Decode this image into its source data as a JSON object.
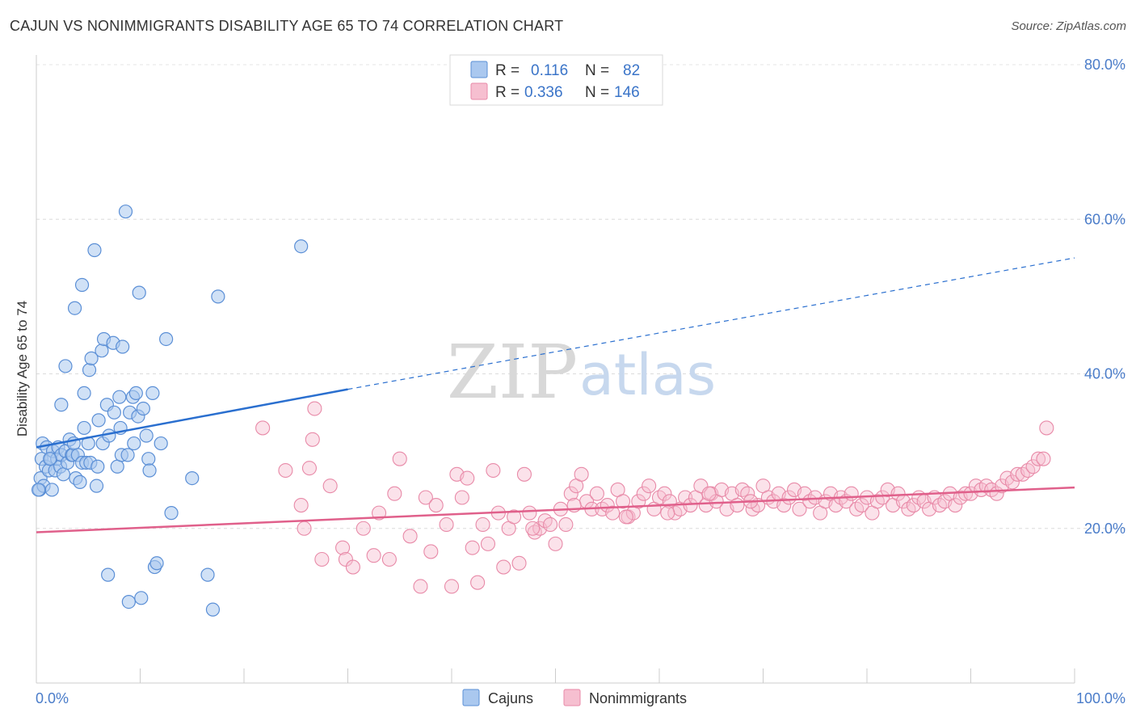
{
  "header": {
    "title": "CAJUN VS NONIMMIGRANTS DISABILITY AGE 65 TO 74 CORRELATION CHART",
    "source": "Source: ZipAtlas.com"
  },
  "watermark": {
    "zip": "ZIP",
    "atlas": "atlas"
  },
  "legend": {
    "rows": [
      {
        "r_label": "R =",
        "r_value": "0.116",
        "n_label": "N =",
        "n_value": "82",
        "color": "#aac8ef",
        "stroke": "#5b8fd6"
      },
      {
        "r_label": "R =",
        "r_value": "0.336",
        "n_label": "N =",
        "n_value": "146",
        "color": "#f6bfd0",
        "stroke": "#e88aa8"
      }
    ]
  },
  "bottom_legend": {
    "items": [
      "Cajuns",
      "Nonimmigrants"
    ]
  },
  "colors": {
    "blue": "#5b8fd6",
    "blue_fill": "#aac8ef",
    "blue_line": "#2a6fcf",
    "pink": "#e88aa8",
    "pink_fill": "#f6bfd0",
    "pink_line": "#e0608b",
    "tick_label": "#4a7cc9"
  },
  "chart_data": {
    "type": "scatter",
    "title": "CAJUN VS NONIMMIGRANTS DISABILITY AGE 65 TO 74 CORRELATION CHART",
    "xlabel": "",
    "ylabel": "Disability Age 65 to 74",
    "xlim": [
      0,
      100
    ],
    "ylim": [
      0,
      80
    ],
    "x_tick_labels": [
      "0.0%",
      "100.0%"
    ],
    "y_ticks": [
      20,
      40,
      60,
      80
    ],
    "y_tick_labels": [
      "20.0%",
      "40.0%",
      "60.0%",
      "80.0%"
    ],
    "grid": true,
    "legend_position": "top-center",
    "series": [
      {
        "name": "Cajuns",
        "r": 0.116,
        "n": 82,
        "trend": {
          "x0": 0,
          "y0": 30.5,
          "x1": 30,
          "y1": 38.0,
          "dashed_to": {
            "x": 100,
            "y": 55.0
          }
        },
        "points": [
          [
            0.3,
            25.0
          ],
          [
            0.4,
            26.5
          ],
          [
            0.5,
            29.0
          ],
          [
            0.6,
            31.0
          ],
          [
            0.7,
            25.5
          ],
          [
            0.9,
            28.0
          ],
          [
            1.0,
            30.5
          ],
          [
            1.2,
            27.5
          ],
          [
            1.4,
            29.0
          ],
          [
            1.5,
            25.0
          ],
          [
            1.6,
            30.0
          ],
          [
            1.8,
            27.5
          ],
          [
            2.0,
            29.0
          ],
          [
            2.1,
            30.5
          ],
          [
            2.3,
            28.0
          ],
          [
            2.4,
            29.5
          ],
          [
            2.6,
            27.0
          ],
          [
            2.8,
            30.0
          ],
          [
            3.0,
            28.5
          ],
          [
            3.2,
            31.5
          ],
          [
            3.4,
            29.5
          ],
          [
            3.5,
            29.5
          ],
          [
            3.6,
            31.0
          ],
          [
            3.8,
            26.5
          ],
          [
            4.0,
            29.5
          ],
          [
            4.2,
            26.0
          ],
          [
            4.4,
            28.5
          ],
          [
            4.6,
            33.0
          ],
          [
            4.8,
            28.5
          ],
          [
            5.0,
            31.0
          ],
          [
            5.2,
            28.5
          ],
          [
            2.4,
            36.0
          ],
          [
            2.8,
            41.0
          ],
          [
            3.7,
            48.5
          ],
          [
            4.4,
            51.5
          ],
          [
            4.6,
            37.5
          ],
          [
            5.1,
            40.5
          ],
          [
            5.3,
            42.0
          ],
          [
            5.6,
            56.0
          ],
          [
            5.8,
            25.5
          ],
          [
            5.9,
            28.0
          ],
          [
            6.0,
            34.0
          ],
          [
            6.3,
            43.0
          ],
          [
            6.4,
            31.0
          ],
          [
            6.5,
            44.5
          ],
          [
            6.8,
            36.0
          ],
          [
            6.9,
            14.0
          ],
          [
            7.0,
            32.0
          ],
          [
            7.4,
            44.0
          ],
          [
            7.5,
            35.0
          ],
          [
            7.8,
            28.0
          ],
          [
            8.0,
            37.0
          ],
          [
            8.1,
            33.0
          ],
          [
            8.2,
            29.5
          ],
          [
            8.3,
            43.5
          ],
          [
            8.6,
            61.0
          ],
          [
            8.8,
            29.5
          ],
          [
            8.9,
            10.5
          ],
          [
            9.0,
            35.0
          ],
          [
            9.3,
            37.0
          ],
          [
            9.4,
            31.0
          ],
          [
            9.6,
            37.5
          ],
          [
            9.8,
            34.5
          ],
          [
            9.9,
            50.5
          ],
          [
            10.1,
            11.0
          ],
          [
            10.3,
            35.5
          ],
          [
            10.6,
            32.0
          ],
          [
            10.8,
            29.0
          ],
          [
            10.9,
            27.5
          ],
          [
            11.2,
            37.5
          ],
          [
            11.4,
            15.0
          ],
          [
            11.6,
            15.5
          ],
          [
            12.0,
            31.0
          ],
          [
            12.5,
            44.5
          ],
          [
            13.0,
            22.0
          ],
          [
            15.0,
            26.5
          ],
          [
            16.5,
            14.0
          ],
          [
            17.0,
            9.5
          ],
          [
            17.5,
            50.0
          ],
          [
            25.5,
            56.5
          ],
          [
            0.2,
            25.0
          ],
          [
            1.3,
            29.0
          ]
        ]
      },
      {
        "name": "Nonimmigrants",
        "r": 0.336,
        "n": 146,
        "trend": {
          "x0": 0,
          "y0": 19.5,
          "x1": 100,
          "y1": 25.3
        },
        "points": [
          [
            21.8,
            33.0
          ],
          [
            24.0,
            27.5
          ],
          [
            25.5,
            23.0
          ],
          [
            25.8,
            20.0
          ],
          [
            26.3,
            27.8
          ],
          [
            26.6,
            31.5
          ],
          [
            26.8,
            35.5
          ],
          [
            27.5,
            16.0
          ],
          [
            28.3,
            25.5
          ],
          [
            29.5,
            17.5
          ],
          [
            29.8,
            16.0
          ],
          [
            30.5,
            15.0
          ],
          [
            31.5,
            20.0
          ],
          [
            32.5,
            16.5
          ],
          [
            33.0,
            22.0
          ],
          [
            34.0,
            16.0
          ],
          [
            34.5,
            24.5
          ],
          [
            35.0,
            29.0
          ],
          [
            36.0,
            19.0
          ],
          [
            37.0,
            12.5
          ],
          [
            37.5,
            24.0
          ],
          [
            38.0,
            17.0
          ],
          [
            38.5,
            23.0
          ],
          [
            39.5,
            20.5
          ],
          [
            40.0,
            12.5
          ],
          [
            40.5,
            27.0
          ],
          [
            41.0,
            24.0
          ],
          [
            41.5,
            26.5
          ],
          [
            42.0,
            17.5
          ],
          [
            42.5,
            13.0
          ],
          [
            43.0,
            20.5
          ],
          [
            43.5,
            18.0
          ],
          [
            44.0,
            27.5
          ],
          [
            44.5,
            22.0
          ],
          [
            45.0,
            15.0
          ],
          [
            45.5,
            20.0
          ],
          [
            46.0,
            21.5
          ],
          [
            46.5,
            15.5
          ],
          [
            47.0,
            27.0
          ],
          [
            47.5,
            22.0
          ],
          [
            48.0,
            19.5
          ],
          [
            48.5,
            20.0
          ],
          [
            49.0,
            21.0
          ],
          [
            49.5,
            20.5
          ],
          [
            50.0,
            18.0
          ],
          [
            50.5,
            22.5
          ],
          [
            51.0,
            20.5
          ],
          [
            51.5,
            24.5
          ],
          [
            52.0,
            25.5
          ],
          [
            52.5,
            27.0
          ],
          [
            53.0,
            23.5
          ],
          [
            53.5,
            22.5
          ],
          [
            54.0,
            24.5
          ],
          [
            54.5,
            22.5
          ],
          [
            55.0,
            23.0
          ],
          [
            55.5,
            22.0
          ],
          [
            56.0,
            25.0
          ],
          [
            56.5,
            23.5
          ],
          [
            57.0,
            21.5
          ],
          [
            57.5,
            22.0
          ],
          [
            58.0,
            23.5
          ],
          [
            58.5,
            24.5
          ],
          [
            59.0,
            25.5
          ],
          [
            59.5,
            22.5
          ],
          [
            60.0,
            24.0
          ],
          [
            60.5,
            24.5
          ],
          [
            61.0,
            23.5
          ],
          [
            61.5,
            22.0
          ],
          [
            62.0,
            22.5
          ],
          [
            62.5,
            24.0
          ],
          [
            63.0,
            23.0
          ],
          [
            63.5,
            24.0
          ],
          [
            64.0,
            25.5
          ],
          [
            64.5,
            23.0
          ],
          [
            65.0,
            24.5
          ],
          [
            65.5,
            23.5
          ],
          [
            66.0,
            25.0
          ],
          [
            66.5,
            22.5
          ],
          [
            67.0,
            24.5
          ],
          [
            67.5,
            23.0
          ],
          [
            68.0,
            25.0
          ],
          [
            68.5,
            24.5
          ],
          [
            69.0,
            22.5
          ],
          [
            69.5,
            23.0
          ],
          [
            70.0,
            25.5
          ],
          [
            70.5,
            24.0
          ],
          [
            71.0,
            23.5
          ],
          [
            71.5,
            24.5
          ],
          [
            72.0,
            23.0
          ],
          [
            72.5,
            24.0
          ],
          [
            73.0,
            25.0
          ],
          [
            73.5,
            22.5
          ],
          [
            74.0,
            24.5
          ],
          [
            74.5,
            23.5
          ],
          [
            75.0,
            24.0
          ],
          [
            75.5,
            22.0
          ],
          [
            76.0,
            23.5
          ],
          [
            76.5,
            24.5
          ],
          [
            77.0,
            23.0
          ],
          [
            77.5,
            24.0
          ],
          [
            78.0,
            23.5
          ],
          [
            78.5,
            24.5
          ],
          [
            79.0,
            22.5
          ],
          [
            79.5,
            23.0
          ],
          [
            80.0,
            24.0
          ],
          [
            80.5,
            22.0
          ],
          [
            81.0,
            23.5
          ],
          [
            81.5,
            24.0
          ],
          [
            82.0,
            25.0
          ],
          [
            82.5,
            23.0
          ],
          [
            83.0,
            24.5
          ],
          [
            83.5,
            23.5
          ],
          [
            84.0,
            22.5
          ],
          [
            84.5,
            23.0
          ],
          [
            85.0,
            24.0
          ],
          [
            85.5,
            23.5
          ],
          [
            86.0,
            22.5
          ],
          [
            86.5,
            24.0
          ],
          [
            87.0,
            23.0
          ],
          [
            87.5,
            23.5
          ],
          [
            88.0,
            24.5
          ],
          [
            88.5,
            23.0
          ],
          [
            89.0,
            24.0
          ],
          [
            89.5,
            24.5
          ],
          [
            90.0,
            24.5
          ],
          [
            90.5,
            25.5
          ],
          [
            91.0,
            25.0
          ],
          [
            91.5,
            25.5
          ],
          [
            92.0,
            25.0
          ],
          [
            92.5,
            24.5
          ],
          [
            93.0,
            25.5
          ],
          [
            93.5,
            26.5
          ],
          [
            94.0,
            26.0
          ],
          [
            94.5,
            27.0
          ],
          [
            95.0,
            27.0
          ],
          [
            95.5,
            27.5
          ],
          [
            96.0,
            28.0
          ],
          [
            96.5,
            29.0
          ],
          [
            97.0,
            29.0
          ],
          [
            97.3,
            33.0
          ],
          [
            47.8,
            20.0
          ],
          [
            51.8,
            23.0
          ],
          [
            56.8,
            21.5
          ],
          [
            60.8,
            22.0
          ],
          [
            64.8,
            24.5
          ],
          [
            68.8,
            23.5
          ]
        ]
      }
    ]
  }
}
